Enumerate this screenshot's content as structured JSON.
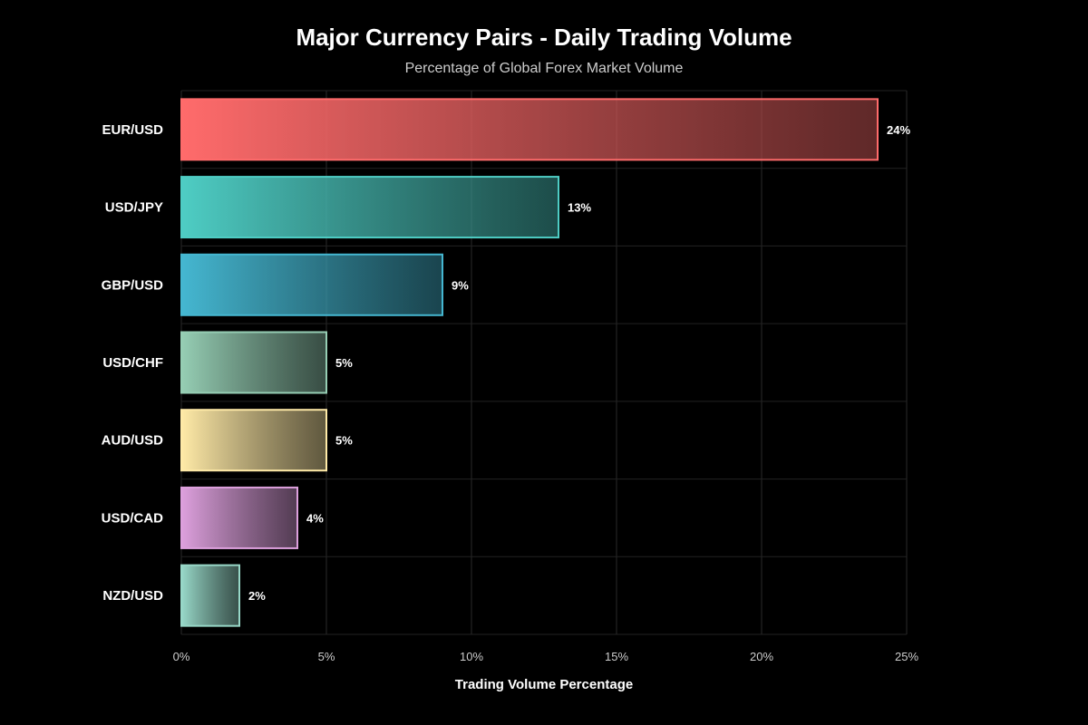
{
  "chart_data": {
    "type": "bar",
    "orientation": "horizontal",
    "title": "Major Currency Pairs - Daily Trading Volume",
    "subtitle": "Percentage of Global Forex Market Volume",
    "xlabel": "Trading Volume Percentage",
    "ylabel": "",
    "categories": [
      "EUR/USD",
      "USD/JPY",
      "GBP/USD",
      "USD/CHF",
      "AUD/USD",
      "USD/CAD",
      "NZD/USD"
    ],
    "values": [
      24,
      13,
      9,
      5,
      5,
      4,
      2
    ],
    "data_labels": [
      "24%",
      "13%",
      "9%",
      "5%",
      "5%",
      "4%",
      "2%"
    ],
    "colors": [
      "#ff6b6b",
      "#4ecdc4",
      "#45b7d1",
      "#96ceb4",
      "#ffeaa7",
      "#dda0dd",
      "#98d8c8"
    ],
    "xlim": [
      0,
      25
    ],
    "xticks": [
      0,
      5,
      10,
      15,
      20,
      25
    ],
    "xtick_labels": [
      "0%",
      "5%",
      "10%",
      "15%",
      "20%",
      "25%"
    ],
    "grid": true,
    "legend": "none",
    "background": "#000000"
  }
}
